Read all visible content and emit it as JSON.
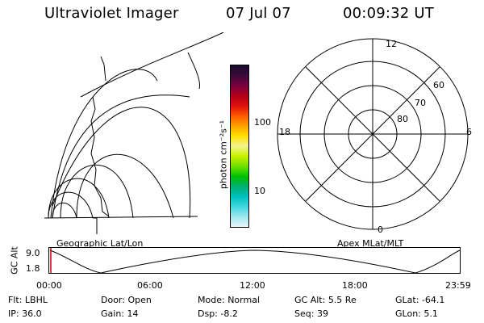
{
  "header": {
    "title": "Ultraviolet Imager",
    "date": "07 Jul 07",
    "time": "00:09:32 UT"
  },
  "left_panel": {
    "label": "Geographic Lat/Lon"
  },
  "colorbar": {
    "unit_label": "photon cm⁻²s⁻¹",
    "ticks": [
      "100",
      "10"
    ]
  },
  "right_panel": {
    "label": "Apex MLat/MLT",
    "mlt_labels": {
      "top": "12",
      "left": "18",
      "right": "6",
      "bottom": "0"
    },
    "lat_labels": [
      "60",
      "70",
      "80"
    ]
  },
  "altitude_strip": {
    "axis_label": "GC Alt",
    "y_ticks": [
      "9.0",
      "1.8"
    ],
    "x_ticks": [
      "00:00",
      "06:00",
      "12:00",
      "18:00",
      "23:59"
    ]
  },
  "info": {
    "row1": [
      {
        "label": "Flt:",
        "value": "LBHL"
      },
      {
        "label": "Door:",
        "value": "Open"
      },
      {
        "label": "Mode:",
        "value": "Normal"
      },
      {
        "label": "GC Alt:",
        "value": "5.5 Re"
      },
      {
        "label": "GLat:",
        "value": "-64.1"
      }
    ],
    "row2": [
      {
        "label": "IP:",
        "value": "36.0"
      },
      {
        "label": "Gain:",
        "value": "14"
      },
      {
        "label": "Dsp:",
        "value": "-8.2"
      },
      {
        "label": "Seq:",
        "value": "39"
      },
      {
        "label": "GLon:",
        "value": "5.1"
      }
    ]
  },
  "colors": {
    "line": "#000000",
    "marker": "#cc0000",
    "colorbar": [
      "#1a0a2e",
      "#3a0a3a",
      "#7a0040",
      "#b00018",
      "#e01010",
      "#ff5a00",
      "#ffa000",
      "#ffe000",
      "#f4f490",
      "#c8f000",
      "#70e000",
      "#00c000",
      "#00b070",
      "#00c0c0",
      "#40d8e0",
      "#a0e8f0",
      "#e8f4f8"
    ]
  }
}
